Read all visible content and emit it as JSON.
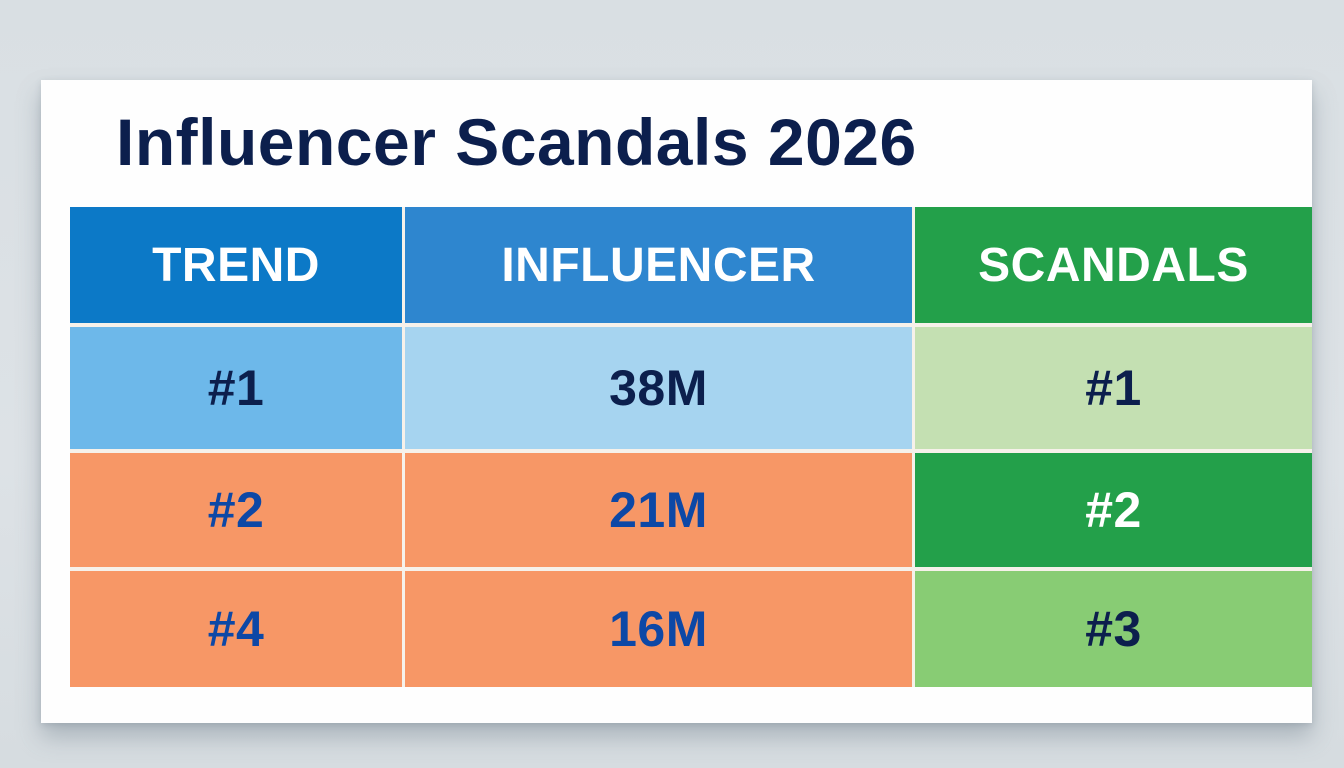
{
  "title": "Influencer Scandals 2026",
  "table": {
    "headers": [
      "TREND",
      "INFLUENCER",
      "SCANDALS"
    ],
    "header_colors": [
      "#0c79c7",
      "#2e86cf",
      "#23a04a"
    ],
    "rows": [
      {
        "cells": [
          "#1",
          "38M",
          "#1"
        ],
        "bg": [
          "#6db8ea",
          "#a6d4f0",
          "#c4e0b2"
        ],
        "fg": [
          "#0c1f4d",
          "#0c1f4d",
          "#0c1f4d"
        ]
      },
      {
        "cells": [
          "#2",
          "21M",
          "#2"
        ],
        "bg": [
          "#f79766",
          "#f79766",
          "#23a04a"
        ],
        "fg": [
          "#0d48a6",
          "#0d48a6",
          "#ffffff"
        ]
      },
      {
        "cells": [
          "#4",
          "16M",
          "#3"
        ],
        "bg": [
          "#f79766",
          "#f79766",
          "#88cc74"
        ],
        "fg": [
          "#0d48a6",
          "#0d48a6",
          "#0c1f4d"
        ]
      }
    ]
  },
  "chart_data": {
    "type": "table",
    "title": "Influencer Scandals 2026",
    "columns": [
      "TREND",
      "INFLUENCER",
      "SCANDALS"
    ],
    "rows": [
      [
        "#1",
        "38M",
        "#1"
      ],
      [
        "#2",
        "21M",
        "#2"
      ],
      [
        "#4",
        "16M",
        "#3"
      ]
    ]
  }
}
